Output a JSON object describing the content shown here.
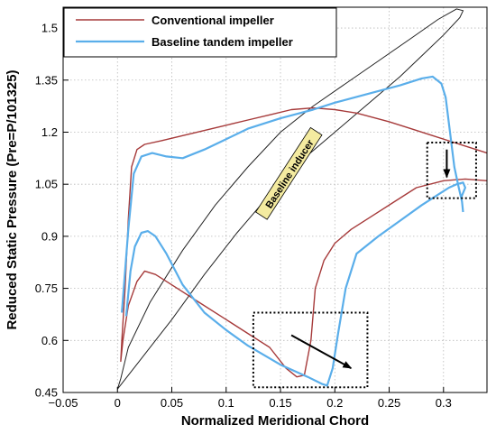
{
  "chart_data": {
    "type": "line",
    "xlabel": "Normalized Meridional Chord",
    "ylabel": "Reduced Static Pressure (Pre=P/101325)",
    "xlim": [
      -0.05,
      0.34
    ],
    "ylim": [
      0.45,
      1.56
    ],
    "x_ticks": [
      -0.05,
      0,
      0.05,
      0.1,
      0.15,
      0.2,
      0.25,
      0.3
    ],
    "x_tick_labels": [
      "−0.05",
      "0",
      "0.05",
      "0.1",
      "0.15",
      "0.2",
      "0.25",
      "0.3"
    ],
    "y_ticks": [
      0.45,
      0.6,
      0.75,
      0.9,
      1.05,
      1.2,
      1.35,
      1.5
    ],
    "y_tick_labels": [
      "0.45",
      "0.6",
      "0.75",
      "0.9",
      "1.05",
      "1.2",
      "1.35",
      "1.5"
    ],
    "grid": true,
    "legend_position": "top-left",
    "series": [
      {
        "name": "Conventional impeller",
        "color": "#a63a3a",
        "segments": [
          [
            [
              0.34,
              1.14
            ],
            [
              0.33,
              1.15
            ],
            [
              0.31,
              1.17
            ],
            [
              0.29,
              1.19
            ],
            [
              0.27,
              1.21
            ],
            [
              0.25,
              1.23
            ],
            [
              0.22,
              1.255
            ],
            [
              0.2,
              1.265
            ],
            [
              0.18,
              1.27
            ],
            [
              0.16,
              1.265
            ],
            [
              0.14,
              1.25
            ],
            [
              0.12,
              1.235
            ],
            [
              0.1,
              1.22
            ],
            [
              0.08,
              1.205
            ],
            [
              0.06,
              1.19
            ],
            [
              0.04,
              1.175
            ],
            [
              0.025,
              1.165
            ],
            [
              0.018,
              1.15
            ],
            [
              0.013,
              1.1
            ],
            [
              0.01,
              0.95
            ],
            [
              0.007,
              0.75
            ],
            [
              0.004,
              0.6
            ],
            [
              0.003,
              0.54
            ],
            [
              0.005,
              0.6
            ],
            [
              0.01,
              0.7
            ],
            [
              0.018,
              0.77
            ],
            [
              0.025,
              0.8
            ],
            [
              0.035,
              0.79
            ],
            [
              0.05,
              0.76
            ],
            [
              0.075,
              0.71
            ],
            [
              0.1,
              0.66
            ],
            [
              0.12,
              0.62
            ],
            [
              0.14,
              0.58
            ],
            [
              0.155,
              0.52
            ],
            [
              0.165,
              0.495
            ],
            [
              0.172,
              0.5
            ],
            [
              0.178,
              0.6
            ],
            [
              0.182,
              0.75
            ],
            [
              0.19,
              0.83
            ],
            [
              0.2,
              0.88
            ],
            [
              0.215,
              0.92
            ],
            [
              0.235,
              0.96
            ],
            [
              0.255,
              1.0
            ],
            [
              0.275,
              1.04
            ],
            [
              0.3,
              1.06
            ],
            [
              0.32,
              1.065
            ],
            [
              0.34,
              1.06
            ]
          ]
        ]
      },
      {
        "name": "Baseline tandem impeller",
        "color": "#5aaeea",
        "segments": [
          [
            [
              0.004,
              0.68
            ],
            [
              0.01,
              0.92
            ],
            [
              0.015,
              1.08
            ],
            [
              0.022,
              1.13
            ],
            [
              0.032,
              1.14
            ],
            [
              0.045,
              1.13
            ],
            [
              0.06,
              1.125
            ],
            [
              0.08,
              1.15
            ],
            [
              0.1,
              1.18
            ],
            [
              0.12,
              1.21
            ],
            [
              0.15,
              1.24
            ],
            [
              0.18,
              1.265
            ],
            [
              0.2,
              1.285
            ],
            [
              0.23,
              1.31
            ],
            [
              0.26,
              1.335
            ],
            [
              0.28,
              1.355
            ],
            [
              0.29,
              1.36
            ],
            [
              0.298,
              1.34
            ],
            [
              0.302,
              1.3
            ],
            [
              0.306,
              1.2
            ],
            [
              0.31,
              1.1
            ],
            [
              0.314,
              1.04
            ],
            [
              0.317,
              1.0
            ],
            [
              0.318,
              0.97
            ]
          ],
          [
            [
              0.008,
              0.67
            ],
            [
              0.012,
              0.8
            ],
            [
              0.016,
              0.87
            ],
            [
              0.022,
              0.91
            ],
            [
              0.028,
              0.915
            ],
            [
              0.035,
              0.9
            ],
            [
              0.045,
              0.85
            ],
            [
              0.06,
              0.76
            ],
            [
              0.08,
              0.68
            ],
            [
              0.1,
              0.63
            ],
            [
              0.12,
              0.585
            ],
            [
              0.15,
              0.53
            ],
            [
              0.175,
              0.495
            ],
            [
              0.188,
              0.475
            ],
            [
              0.193,
              0.47
            ],
            [
              0.198,
              0.52
            ],
            [
              0.203,
              0.62
            ],
            [
              0.21,
              0.75
            ],
            [
              0.22,
              0.85
            ],
            [
              0.24,
              0.9
            ],
            [
              0.26,
              0.945
            ],
            [
              0.28,
              0.99
            ],
            [
              0.295,
              1.02
            ],
            [
              0.305,
              1.04
            ],
            [
              0.312,
              1.05
            ],
            [
              0.318,
              1.055
            ],
            [
              0.32,
              1.04
            ],
            [
              0.316,
              1.01
            ]
          ]
        ]
      }
    ],
    "blade_outline": {
      "color": "#222222",
      "points": [
        [
          0.0,
          0.46
        ],
        [
          0.02,
          0.54
        ],
        [
          0.05,
          0.66
        ],
        [
          0.08,
          0.79
        ],
        [
          0.11,
          0.91
        ],
        [
          0.14,
          1.02
        ],
        [
          0.17,
          1.12
        ],
        [
          0.2,
          1.2
        ],
        [
          0.23,
          1.28
        ],
        [
          0.26,
          1.36
        ],
        [
          0.28,
          1.42
        ],
        [
          0.3,
          1.48
        ],
        [
          0.315,
          1.53
        ],
        [
          0.318,
          1.55
        ],
        [
          0.312,
          1.555
        ],
        [
          0.295,
          1.525
        ],
        [
          0.27,
          1.47
        ],
        [
          0.24,
          1.405
        ],
        [
          0.21,
          1.34
        ],
        [
          0.18,
          1.275
        ],
        [
          0.15,
          1.2
        ],
        [
          0.12,
          1.1
        ],
        [
          0.09,
          0.99
        ],
        [
          0.06,
          0.86
        ],
        [
          0.03,
          0.71
        ],
        [
          0.01,
          0.58
        ],
        [
          0.003,
          0.49
        ],
        [
          0.0,
          0.46
        ]
      ]
    },
    "annotations": [
      {
        "text": "Baseline inducer",
        "x": 0.158,
        "y": 1.08,
        "rotation_deg": -57
      },
      {
        "box": [
          0.125,
          0.465,
          0.23,
          0.68
        ]
      },
      {
        "box": [
          0.285,
          1.01,
          0.33,
          1.17
        ]
      },
      {
        "arrow": [
          [
            0.16,
            0.615
          ],
          [
            0.215,
            0.52
          ]
        ]
      },
      {
        "arrow": [
          [
            0.303,
            1.15
          ],
          [
            0.303,
            1.07
          ]
        ]
      }
    ]
  }
}
